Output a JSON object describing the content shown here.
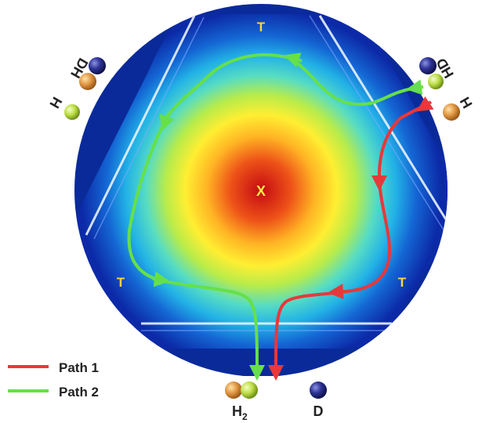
{
  "diagram": {
    "vertex_labels": {
      "top": "T",
      "left": "T",
      "right": "T"
    },
    "center_label": "X",
    "colors": {
      "path1": "#e8383a",
      "path2": "#66e04a",
      "vertex_label": "#ffd43a",
      "center_label": "#ffee44",
      "atom_h": "#d98a2e",
      "atom_d": "#2a2f8e",
      "atom_h_light": "#b6dc3a"
    }
  },
  "molecules": {
    "top_left": {
      "molecule": "DH",
      "atom": "H"
    },
    "top_right": {
      "molecule": "HD",
      "atom": "H"
    },
    "bottom": {
      "product1": "H",
      "product1_subscript": "2",
      "product2": "D"
    }
  },
  "legend": {
    "items": [
      {
        "label": "Path 1",
        "color": "#e8383a"
      },
      {
        "label": "Path 2",
        "color": "#66e04a"
      }
    ]
  }
}
